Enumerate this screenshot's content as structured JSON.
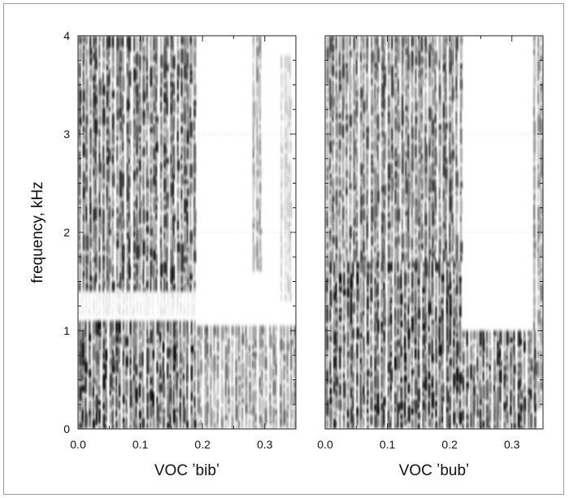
{
  "chart_data": [
    {
      "type": "heatmap",
      "title": "",
      "xlabel": "VOC ʼbibʼ",
      "ylabel": "frequency, kHz",
      "xlim": [
        0.0,
        0.35
      ],
      "ylim": [
        0,
        4
      ],
      "xticks": [
        "0.0",
        "0.1",
        "0.2",
        "0.3"
      ],
      "yticks": [
        "0",
        "1",
        "2",
        "3",
        "4"
      ],
      "colormap": [
        "#ffffff",
        "#000000"
      ],
      "energy_bands": [
        {
          "t": [
            0.0,
            0.19
          ],
          "f": [
            1.4,
            4.0
          ],
          "level": 0.85
        },
        {
          "t": [
            0.0,
            0.19
          ],
          "f": [
            1.15,
            1.4
          ],
          "level": 0.1
        },
        {
          "t": [
            0.0,
            0.19
          ],
          "f": [
            0.0,
            1.1
          ],
          "level": 0.95
        },
        {
          "t": [
            0.19,
            0.35
          ],
          "f": [
            0.0,
            1.05
          ],
          "level": 0.55
        },
        {
          "t": [
            0.28,
            0.295
          ],
          "f": [
            1.6,
            4.0
          ],
          "level": 0.45
        },
        {
          "t": [
            0.325,
            0.345
          ],
          "f": [
            1.3,
            3.8
          ],
          "level": 0.2
        }
      ]
    },
    {
      "type": "heatmap",
      "title": "",
      "xlabel": "VOC ʼbubʼ",
      "ylabel": "",
      "xlim": [
        0.0,
        0.35
      ],
      "ylim": [
        0,
        4
      ],
      "xticks": [
        "0.0",
        "0.1",
        "0.2",
        "0.3"
      ],
      "yticks": [],
      "colormap": [
        "#ffffff",
        "#000000"
      ],
      "energy_bands": [
        {
          "t": [
            0.0,
            0.22
          ],
          "f": [
            1.7,
            4.0
          ],
          "level": 0.75
        },
        {
          "t": [
            0.0,
            0.22
          ],
          "f": [
            0.0,
            1.7
          ],
          "level": 0.95
        },
        {
          "t": [
            0.22,
            0.34
          ],
          "f": [
            0.0,
            1.0
          ],
          "level": 0.9
        },
        {
          "t": [
            0.335,
            0.35
          ],
          "f": [
            0.2,
            4.0
          ],
          "level": 0.5
        }
      ]
    }
  ]
}
